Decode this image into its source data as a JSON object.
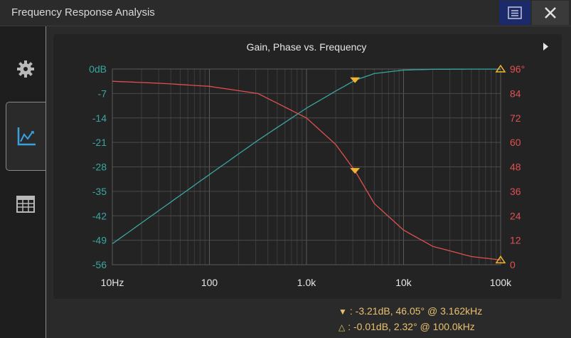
{
  "window": {
    "title": "Frequency Response Analysis"
  },
  "sidebar": {
    "tabs": [
      {
        "name": "settings",
        "active": false
      },
      {
        "name": "chart",
        "active": true
      },
      {
        "name": "table",
        "active": false
      }
    ]
  },
  "chart_data": {
    "type": "line",
    "title": "Gain, Phase vs. Frequency",
    "x_scale": "log",
    "xlim": [
      10,
      100000
    ],
    "x_ticks": [
      10,
      100,
      1000,
      10000,
      100000
    ],
    "x_tick_labels": [
      "10Hz",
      "100",
      "1.0k",
      "10k",
      "100k"
    ],
    "y_left": {
      "ylim": [
        -56,
        0
      ],
      "ticks": [
        0,
        -7,
        -14,
        -21,
        -28,
        -35,
        -42,
        -49,
        -56
      ],
      "tick_labels": [
        "0dB",
        "-7",
        "-14",
        "-21",
        "-28",
        "-35",
        "-42",
        "-49",
        "-56"
      ],
      "color": "#3aa6a0"
    },
    "y_right": {
      "ylim": [
        0,
        96
      ],
      "ticks": [
        96,
        84,
        72,
        60,
        48,
        36,
        24,
        12,
        0
      ],
      "tick_labels": [
        "96°",
        "84",
        "72",
        "60",
        "48",
        "36",
        "24",
        "12",
        "0"
      ],
      "color": "#e05050"
    },
    "series": [
      {
        "axis": "left",
        "color": "#3aa6a0",
        "x": [
          10,
          31.6,
          100,
          316,
          1000,
          2000,
          3162,
          5000,
          10000,
          20000,
          50000,
          100000
        ],
        "y": [
          -50,
          -40.1,
          -30.2,
          -20.4,
          -11.2,
          -6.3,
          -3.21,
          -1.3,
          -0.3,
          -0.08,
          -0.02,
          -0.01
        ]
      },
      {
        "axis": "right",
        "color": "#e05050",
        "x": [
          10,
          31.6,
          100,
          316,
          1000,
          2000,
          3162,
          5000,
          10000,
          20000,
          50000,
          100000
        ],
        "y": [
          90,
          89,
          87.5,
          84,
          72,
          59,
          46.05,
          30,
          17,
          9,
          4,
          2.32
        ]
      }
    ],
    "markers": [
      {
        "shape": "filled-down-triangle",
        "x": 3162,
        "gain_db": -3.21,
        "phase_deg": 46.05,
        "readout": "-3.21dB, 46.05° @ 3.162kHz"
      },
      {
        "shape": "hollow-up-triangle",
        "x": 100000,
        "gain_db": -0.01,
        "phase_deg": 2.32,
        "readout": "-0.01dB, 2.32° @ 100.0kHz"
      }
    ],
    "readout_separator": ":",
    "grid": true
  }
}
